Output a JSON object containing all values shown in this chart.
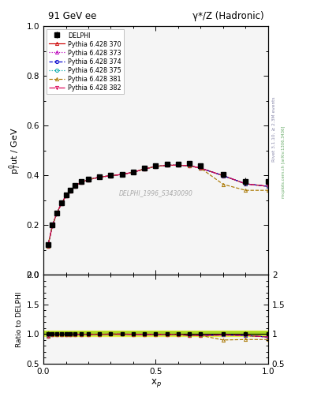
{
  "title_left": "91 GeV ee",
  "title_right": "γ*/Z (Hadronic)",
  "ylabel_main": "p$^0_T$ut / GeV",
  "ylabel_ratio": "Ratio to DELPHI",
  "xlabel": "x$_p$",
  "watermark": "DELPHI_1996_S3430090",
  "rivet_text": "Rivet 3.1.10, ≥ 2.3M events",
  "mcplots_text": "mcplots.cern.ch [arXiv:1306.3436]",
  "xp": [
    0.02,
    0.04,
    0.06,
    0.08,
    0.1,
    0.12,
    0.14,
    0.17,
    0.2,
    0.25,
    0.3,
    0.35,
    0.4,
    0.45,
    0.5,
    0.55,
    0.6,
    0.65,
    0.7,
    0.8,
    0.9,
    1.0
  ],
  "delphi_y": [
    0.12,
    0.2,
    0.25,
    0.29,
    0.32,
    0.34,
    0.36,
    0.375,
    0.385,
    0.395,
    0.4,
    0.405,
    0.415,
    0.43,
    0.44,
    0.445,
    0.445,
    0.45,
    0.44,
    0.405,
    0.375,
    0.375
  ],
  "delphi_yerr": [
    0.005,
    0.005,
    0.004,
    0.004,
    0.003,
    0.003,
    0.003,
    0.003,
    0.003,
    0.003,
    0.003,
    0.003,
    0.003,
    0.003,
    0.003,
    0.003,
    0.003,
    0.005,
    0.005,
    0.008,
    0.015,
    0.02
  ],
  "pythia_370_y": [
    0.116,
    0.198,
    0.248,
    0.287,
    0.317,
    0.337,
    0.357,
    0.373,
    0.383,
    0.393,
    0.399,
    0.404,
    0.413,
    0.426,
    0.436,
    0.441,
    0.441,
    0.439,
    0.429,
    0.399,
    0.366,
    0.356
  ],
  "pythia_373_y": [
    0.116,
    0.198,
    0.248,
    0.287,
    0.317,
    0.337,
    0.357,
    0.373,
    0.383,
    0.393,
    0.399,
    0.404,
    0.413,
    0.426,
    0.436,
    0.441,
    0.441,
    0.439,
    0.429,
    0.399,
    0.366,
    0.356
  ],
  "pythia_374_y": [
    0.116,
    0.198,
    0.248,
    0.287,
    0.317,
    0.337,
    0.357,
    0.373,
    0.383,
    0.393,
    0.399,
    0.404,
    0.413,
    0.426,
    0.436,
    0.441,
    0.441,
    0.439,
    0.429,
    0.399,
    0.366,
    0.356
  ],
  "pythia_375_y": [
    0.116,
    0.198,
    0.248,
    0.287,
    0.317,
    0.337,
    0.357,
    0.373,
    0.383,
    0.393,
    0.399,
    0.404,
    0.413,
    0.426,
    0.436,
    0.441,
    0.441,
    0.439,
    0.429,
    0.399,
    0.366,
    0.356
  ],
  "pythia_381_y": [
    0.116,
    0.198,
    0.248,
    0.287,
    0.317,
    0.337,
    0.357,
    0.373,
    0.383,
    0.393,
    0.399,
    0.404,
    0.413,
    0.426,
    0.436,
    0.441,
    0.441,
    0.439,
    0.429,
    0.364,
    0.34,
    0.34
  ],
  "pythia_382_y": [
    0.116,
    0.198,
    0.248,
    0.287,
    0.317,
    0.337,
    0.357,
    0.373,
    0.383,
    0.393,
    0.399,
    0.404,
    0.413,
    0.426,
    0.436,
    0.441,
    0.441,
    0.439,
    0.429,
    0.399,
    0.366,
    0.356
  ],
  "series": [
    {
      "label": "Pythia 6.428 370",
      "color": "#cc0000",
      "linestyle": "-",
      "marker": "^",
      "mfc": "none"
    },
    {
      "label": "Pythia 6.428 373",
      "color": "#bb00bb",
      "linestyle": ":",
      "marker": "^",
      "mfc": "none"
    },
    {
      "label": "Pythia 6.428 374",
      "color": "#0000cc",
      "linestyle": "--",
      "marker": "o",
      "mfc": "none"
    },
    {
      "label": "Pythia 6.428 375",
      "color": "#00aaaa",
      "linestyle": ":",
      "marker": "o",
      "mfc": "none"
    },
    {
      "label": "Pythia 6.428 381",
      "color": "#aa7700",
      "linestyle": "--",
      "marker": "^",
      "mfc": "none"
    },
    {
      "label": "Pythia 6.428 382",
      "color": "#dd0055",
      "linestyle": "-.",
      "marker": "v",
      "mfc": "none"
    }
  ],
  "series_keys": [
    "pythia_370_y",
    "pythia_373_y",
    "pythia_374_y",
    "pythia_375_y",
    "pythia_381_y",
    "pythia_382_y"
  ],
  "ylim_main": [
    0.0,
    1.0
  ],
  "ylim_ratio": [
    0.5,
    2.0
  ],
  "xlim": [
    0.0,
    1.0
  ],
  "ratio_band_yellow": "#ddee00",
  "ratio_band_green": "#88cc00",
  "ratio_band_alpha": 0.6,
  "ratio_band_inner": [
    0.99,
    1.04
  ],
  "ratio_band_outer": [
    0.97,
    1.06
  ],
  "bg_color": "#ffffff",
  "plot_bg": "#f5f5f5"
}
